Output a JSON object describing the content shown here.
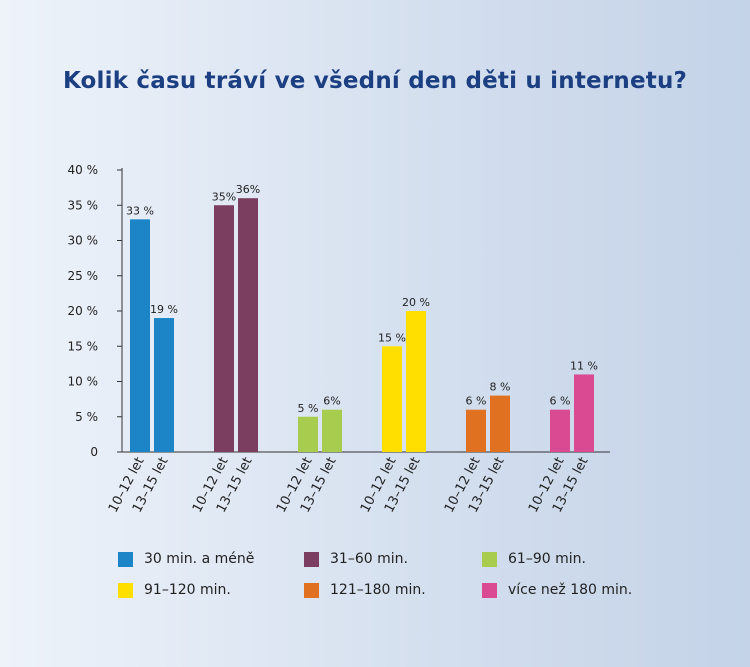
{
  "chart_data": {
    "type": "bar",
    "title": "Kolik času tráví ve všední den děti u internetu?",
    "ylim": [
      0,
      40
    ],
    "yticks": [
      {
        "value": 0,
        "label": "0"
      },
      {
        "value": 5,
        "label": "5 %"
      },
      {
        "value": 10,
        "label": "10 %"
      },
      {
        "value": 15,
        "label": "15 %"
      },
      {
        "value": 20,
        "label": "20 %"
      },
      {
        "value": 25,
        "label": "25 %"
      },
      {
        "value": 30,
        "label": "30 %"
      },
      {
        "value": 35,
        "label": "35 %"
      },
      {
        "value": 40,
        "label": "40 %"
      }
    ],
    "groups": [
      {
        "name": "30 min. a méně",
        "color": "#1b85c8",
        "bars": [
          {
            "category": "10–12 let",
            "value": 33,
            "label": "33 %"
          },
          {
            "category": "13–15 let",
            "value": 19,
            "label": "19 %"
          }
        ]
      },
      {
        "name": "31–60 min.",
        "color": "#7b3e60",
        "bars": [
          {
            "category": "10–12 let",
            "value": 35,
            "label": "35%"
          },
          {
            "category": "13–15 let",
            "value": 36,
            "label": "36%"
          }
        ]
      },
      {
        "name": "61–90 min.",
        "color": "#a8cd4e",
        "bars": [
          {
            "category": "10–12 let",
            "value": 5,
            "label": "5 %"
          },
          {
            "category": "13–15 let",
            "value": 6,
            "label": "6%"
          }
        ]
      },
      {
        "name": "91–120 min.",
        "color": "#ffdf00",
        "bars": [
          {
            "category": "10–12 let",
            "value": 15,
            "label": "15 %"
          },
          {
            "category": "13–15 let",
            "value": 20,
            "label": "20 %"
          }
        ]
      },
      {
        "name": "121–180 min.",
        "color": "#e07120",
        "bars": [
          {
            "category": "10–12 let",
            "value": 6,
            "label": "6 %"
          },
          {
            "category": "13–15 let",
            "value": 8,
            "label": "8 %"
          }
        ]
      },
      {
        "name": "více než 180 min.",
        "color": "#d94a92",
        "bars": [
          {
            "category": "10–12 let",
            "value": 6,
            "label": "6 %"
          },
          {
            "category": "13–15 let",
            "value": 11,
            "label": "11 %"
          }
        ]
      }
    ],
    "xlabel": "",
    "ylabel": ""
  }
}
